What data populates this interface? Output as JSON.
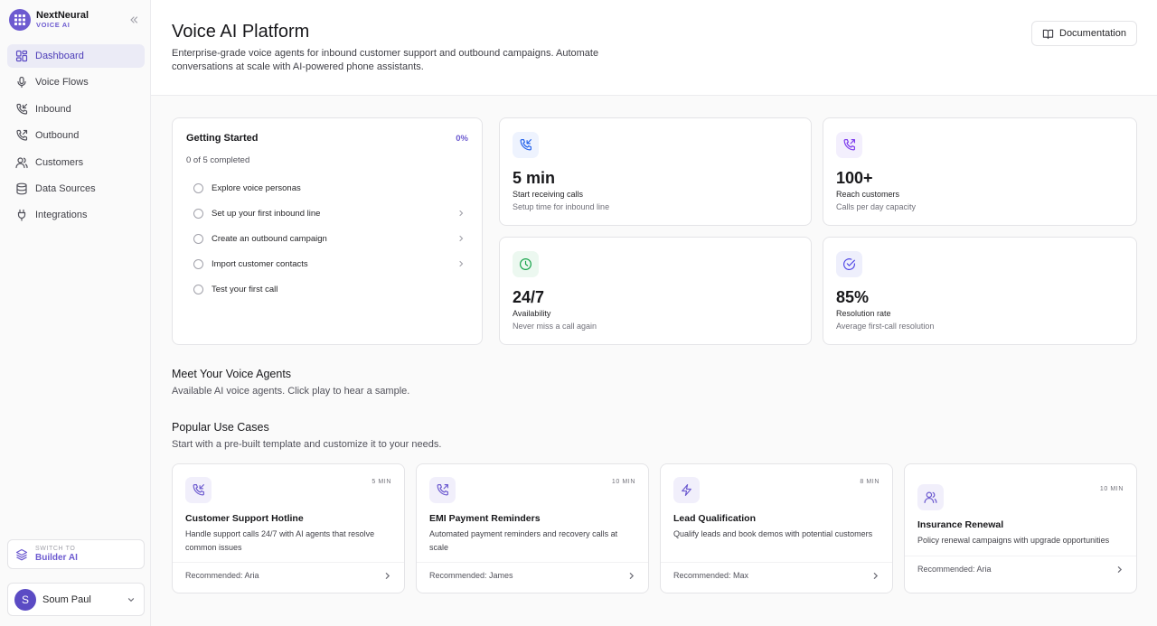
{
  "brand": {
    "name": "NextNeural",
    "sub": "VOICE AI"
  },
  "sidebar": {
    "items": [
      {
        "label": "Dashboard",
        "icon": "grid-icon",
        "active": true
      },
      {
        "label": "Voice Flows",
        "icon": "mic-icon"
      },
      {
        "label": "Inbound",
        "icon": "phone-incoming-icon"
      },
      {
        "label": "Outbound",
        "icon": "phone-outgoing-icon"
      },
      {
        "label": "Customers",
        "icon": "users-icon"
      },
      {
        "label": "Data Sources",
        "icon": "database-icon"
      },
      {
        "label": "Integrations",
        "icon": "plug-icon"
      }
    ],
    "switch": {
      "small": "SWITCH TO",
      "big": "Builder AI"
    },
    "user": {
      "initial": "S",
      "name": "Soum Paul"
    }
  },
  "header": {
    "title": "Voice AI Platform",
    "description": "Enterprise-grade voice agents for inbound customer support and outbound campaigns. Automate conversations at scale with AI-powered phone assistants.",
    "doc_label": "Documentation"
  },
  "getting_started": {
    "title": "Getting Started",
    "percent": "0%",
    "progress": "0 of 5 completed",
    "items": [
      {
        "label": "Explore voice personas",
        "chevron": false
      },
      {
        "label": "Set up your first inbound line",
        "chevron": true
      },
      {
        "label": "Create an outbound campaign",
        "chevron": true
      },
      {
        "label": "Import customer contacts",
        "chevron": true
      },
      {
        "label": "Test your first call",
        "chevron": false
      }
    ]
  },
  "stats": [
    {
      "value": "5 min",
      "label": "Start receiving calls",
      "sub": "Setup time for inbound line",
      "icon": "phone-incoming-icon",
      "color": "#2563eb",
      "bg": "#eef3fe"
    },
    {
      "value": "100+",
      "label": "Reach customers",
      "sub": "Calls per day capacity",
      "icon": "phone-outgoing-icon",
      "color": "#7c3aed",
      "bg": "#f3effd"
    },
    {
      "value": "24/7",
      "label": "Availability",
      "sub": "Never miss a call again",
      "icon": "clock-icon",
      "color": "#16a34a",
      "bg": "#ecf8f0"
    },
    {
      "value": "85%",
      "label": "Resolution rate",
      "sub": "Average first-call resolution",
      "icon": "check-circle-icon",
      "color": "#4f46e5",
      "bg": "#eeeffc"
    }
  ],
  "agents": {
    "title": "Meet Your Voice Agents",
    "sub": "Available AI voice agents. Click play to hear a sample."
  },
  "use_cases": {
    "title": "Popular Use Cases",
    "sub": "Start with a pre-built template and customize it to your needs.",
    "items": [
      {
        "title": "Customer Support Hotline",
        "desc": "Handle support calls 24/7 with AI agents that resolve common issues",
        "duration": "5 MIN",
        "recommended": "Recommended: Aria",
        "icon": "phone-incoming-icon"
      },
      {
        "title": "EMI Payment Reminders",
        "desc": "Automated payment reminders and recovery calls at scale",
        "duration": "10 MIN",
        "recommended": "Recommended: James",
        "icon": "phone-outgoing-icon"
      },
      {
        "title": "Lead Qualification",
        "desc": "Qualify leads and book demos with potential customers",
        "duration": "8 MIN",
        "recommended": "Recommended: Max",
        "icon": "zap-icon"
      },
      {
        "title": "Insurance Renewal",
        "desc": "Policy renewal campaigns with upgrade opportunities",
        "duration": "10 MIN",
        "recommended": "Recommended: Aria",
        "icon": "users-icon"
      }
    ]
  }
}
